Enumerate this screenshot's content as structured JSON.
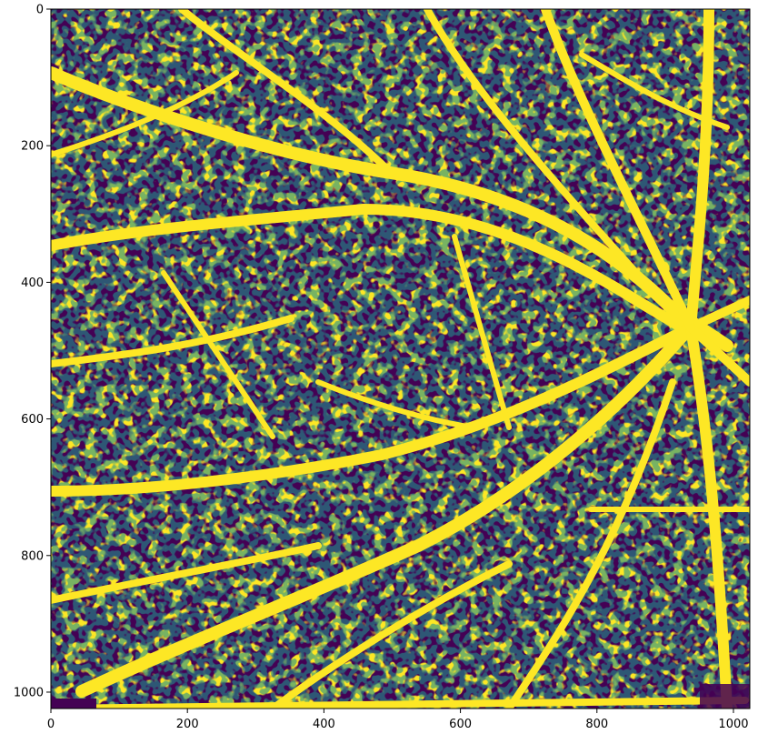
{
  "chart_data": {
    "type": "heatmap",
    "title": "",
    "xlabel": "",
    "ylabel": "",
    "image_width": 1024,
    "image_height": 1024,
    "xlim": [
      0,
      1024
    ],
    "ylim": [
      1024,
      0
    ],
    "x_ticks": [
      {
        "value": 0,
        "label": "0"
      },
      {
        "value": 200,
        "label": "200"
      },
      {
        "value": 400,
        "label": "400"
      },
      {
        "value": 600,
        "label": "600"
      },
      {
        "value": 800,
        "label": "800"
      },
      {
        "value": 1000,
        "label": "1000"
      }
    ],
    "y_ticks": [
      {
        "value": 0,
        "label": "0"
      },
      {
        "value": 200,
        "label": "200"
      },
      {
        "value": 400,
        "label": "400"
      },
      {
        "value": 600,
        "label": "600"
      },
      {
        "value": 800,
        "label": "800"
      },
      {
        "value": 1000,
        "label": "1000"
      }
    ],
    "colormap": "viridis",
    "colors": {
      "high": "#fde725",
      "mid": "#21918c",
      "low": "#440154"
    },
    "content": "binary-segmented leaf vein network"
  }
}
